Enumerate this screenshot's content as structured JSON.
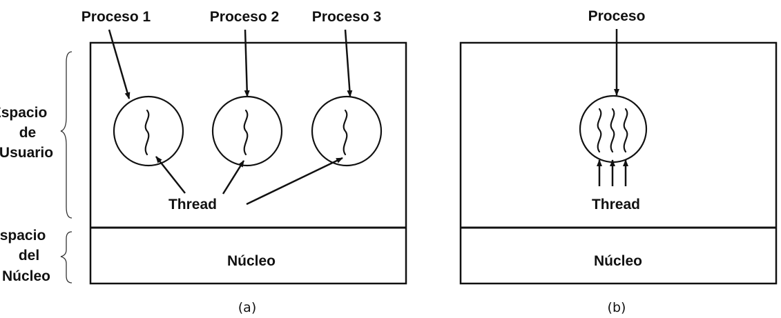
{
  "left_labels": {
    "user_space": [
      "Espacio",
      "de",
      "Usuario"
    ],
    "kernel_space": [
      "Espacio",
      "del",
      "Núcleo"
    ]
  },
  "panel_a": {
    "processes": [
      "Proceso 1",
      "Proceso 2",
      "Proceso 3"
    ],
    "thread_label": "Thread",
    "kernel_label": "Núcleo",
    "caption": "(a)"
  },
  "panel_b": {
    "process": "Proceso",
    "thread_label": "Thread",
    "kernel_label": "Núcleo",
    "caption": "(b)"
  }
}
